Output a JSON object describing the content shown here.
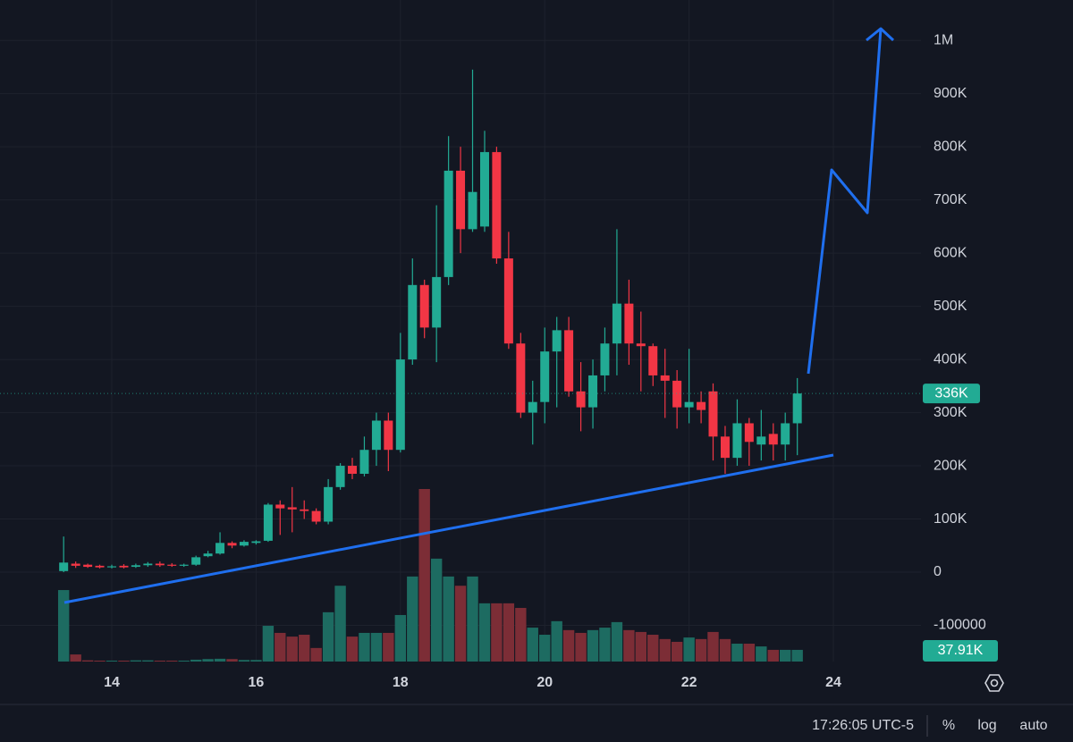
{
  "chart_data": {
    "type": "candlestick",
    "x": [
      13.333,
      13.5,
      13.667,
      13.833,
      14,
      14.167,
      14.333,
      14.5,
      14.667,
      14.833,
      15,
      15.167,
      15.333,
      15.5,
      15.667,
      15.833,
      16,
      16.167,
      16.333,
      16.5,
      16.667,
      16.833,
      17,
      17.167,
      17.333,
      17.5,
      17.667,
      17.833,
      18,
      18.167,
      18.333,
      18.5,
      18.667,
      18.833,
      19,
      19.167,
      19.333,
      19.5,
      19.667,
      19.833,
      20,
      20.167,
      20.333,
      20.5,
      20.667,
      20.833,
      21,
      21.167,
      21.333,
      21.5,
      21.667,
      21.833,
      22,
      22.167,
      22.333,
      22.5,
      22.667,
      22.833,
      23,
      23.167,
      23.333,
      23.5
    ],
    "open": [
      2000,
      16000,
      14000,
      12000,
      9000,
      12000,
      10000,
      13000,
      16000,
      14000,
      12000,
      14000,
      30000,
      35000,
      55000,
      50000,
      55000,
      59000,
      127000,
      122000,
      118000,
      115000,
      95000,
      160000,
      200000,
      185000,
      230000,
      285000,
      230000,
      400000,
      540000,
      460000,
      555000,
      755000,
      645000,
      650000,
      790000,
      590000,
      430000,
      300000,
      320000,
      415000,
      455000,
      340000,
      310000,
      370000,
      430000,
      505000,
      430000,
      425000,
      370000,
      360000,
      310000,
      320000,
      340000,
      255000,
      215000,
      280000,
      240000,
      260000,
      240000,
      280000
    ],
    "high": [
      67000,
      20000,
      16000,
      14000,
      14000,
      15000,
      16000,
      19000,
      20000,
      17000,
      16000,
      31000,
      40000,
      75000,
      58000,
      60000,
      60000,
      130000,
      135000,
      160000,
      135000,
      120000,
      175000,
      205000,
      215000,
      255000,
      300000,
      300000,
      450000,
      590000,
      550000,
      690000,
      820000,
      800000,
      945000,
      830000,
      800000,
      640000,
      450000,
      360000,
      460000,
      480000,
      480000,
      395000,
      400000,
      460000,
      645000,
      550000,
      490000,
      430000,
      420000,
      380000,
      420000,
      340000,
      355000,
      275000,
      325000,
      290000,
      305000,
      280000,
      300000,
      365000
    ],
    "low": [
      0,
      8000,
      8000,
      7000,
      7000,
      7000,
      8000,
      10000,
      10000,
      10000,
      10000,
      12000,
      28000,
      33000,
      45000,
      48000,
      52000,
      57000,
      70000,
      75000,
      100000,
      90000,
      90000,
      155000,
      175000,
      180000,
      200000,
      190000,
      225000,
      390000,
      440000,
      395000,
      540000,
      600000,
      640000,
      640000,
      580000,
      420000,
      290000,
      240000,
      280000,
      310000,
      330000,
      265000,
      270000,
      340000,
      370000,
      390000,
      340000,
      350000,
      290000,
      270000,
      280000,
      280000,
      210000,
      185000,
      200000,
      200000,
      210000,
      210000,
      210000,
      220000
    ],
    "close": [
      18000,
      12000,
      10000,
      9000,
      11000,
      9000,
      13000,
      16000,
      13000,
      12000,
      14000,
      28000,
      35000,
      55000,
      50000,
      57000,
      58000,
      127000,
      120000,
      118000,
      115000,
      95000,
      160000,
      200000,
      185000,
      230000,
      285000,
      230000,
      400000,
      540000,
      460000,
      555000,
      755000,
      645000,
      715000,
      790000,
      590000,
      430000,
      300000,
      320000,
      415000,
      455000,
      340000,
      310000,
      370000,
      430000,
      505000,
      430000,
      425000,
      370000,
      360000,
      310000,
      320000,
      305000,
      255000,
      215000,
      280000,
      245000,
      255000,
      240000,
      280000,
      336000
    ],
    "volume": [
      232000,
      23000,
      4000,
      3000,
      3000,
      3000,
      4000,
      4000,
      3000,
      3000,
      3000,
      6000,
      8000,
      9000,
      8000,
      5000,
      5000,
      116000,
      93000,
      81000,
      87000,
      44000,
      160000,
      246000,
      81000,
      93000,
      93000,
      93000,
      151000,
      276000,
      560000,
      334000,
      276000,
      246000,
      276000,
      189000,
      189000,
      189000,
      174000,
      110000,
      87000,
      131000,
      102000,
      93000,
      102000,
      110000,
      128000,
      102000,
      96000,
      87000,
      73000,
      64000,
      78000,
      73000,
      96000,
      73000,
      58000,
      58000,
      49000,
      38000,
      38000,
      37910
    ],
    "last_price_label": "336K",
    "last_volume_label": "37.91K",
    "up_color": "#22ab94",
    "down_color": "#f23645",
    "volume_up_color": "#1d6b61",
    "volume_down_color": "#7c2d36",
    "xlim": [
      12.451,
      25.214
    ],
    "xticks": [
      14,
      16,
      18,
      20,
      22,
      24
    ],
    "ylim": [
      -168100,
      1076000
    ],
    "yticks": [
      {
        "value": 1000000,
        "label": "1M"
      },
      {
        "value": 900000,
        "label": "900K"
      },
      {
        "value": 800000,
        "label": "800K"
      },
      {
        "value": 700000,
        "label": "700K"
      },
      {
        "value": 600000,
        "label": "600K"
      },
      {
        "value": 500000,
        "label": "500K"
      },
      {
        "value": 400000,
        "label": "400K"
      },
      {
        "value": 300000,
        "label": "300K"
      },
      {
        "value": 200000,
        "label": "200K"
      },
      {
        "value": 100000,
        "label": "100K"
      },
      0,
      -100000
    ],
    "grid": true,
    "log": false
  },
  "toolbar": {
    "time": "17:26:05 UTC-5",
    "percent": "%",
    "log": "log",
    "auto": "auto"
  }
}
